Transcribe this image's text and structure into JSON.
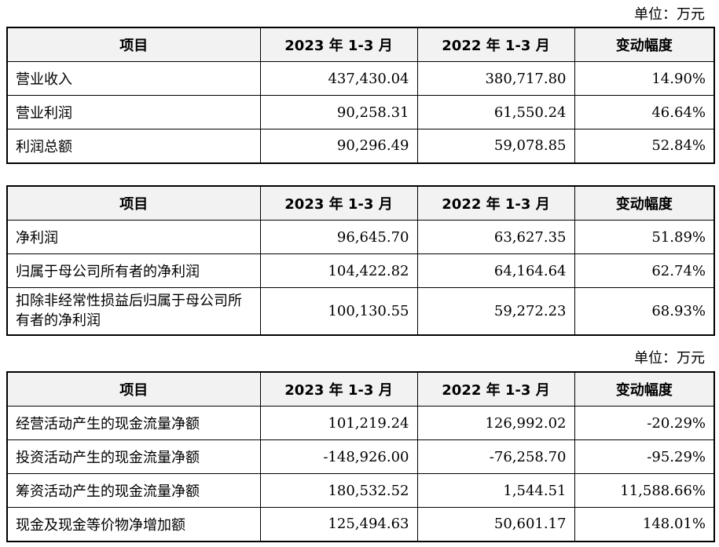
{
  "unit_label_1": "单位：万元",
  "table1": {
    "headers": [
      "项目",
      "2023 年 1-3 月",
      "2022 年 1-3 月",
      "变动幅度"
    ],
    "rows": [
      [
        "营业收入",
        "437,430.04",
        "380,717.80",
        "14.90%"
      ],
      [
        "营业利润",
        "90,258.31",
        "61,550.24",
        "46.64%"
      ],
      [
        "利润总额",
        "90,296.49",
        "59,078.85",
        "52.84%"
      ]
    ]
  },
  "table2": {
    "headers": [
      "项目",
      "2023 年 1-3 月",
      "2022 年 1-3 月",
      "变动幅度"
    ],
    "rows": [
      [
        "净利润",
        "96,645.70",
        "63,627.35",
        "51.89%"
      ],
      [
        "归属于母公司所有者的净利润",
        "104,422.82",
        "64,164.64",
        "62.74%"
      ],
      [
        "扣除非经常性损益后归属于母公司所有者的净利润",
        "100,130.55",
        "59,272.23",
        "68.93%"
      ]
    ]
  },
  "unit_label_2": "单位：万元",
  "table3": {
    "headers": [
      "项目",
      "2023 年 1-3 月",
      "2022 年 1-3 月",
      "变动幅度"
    ],
    "rows": [
      [
        "经营活动产生的现金流量净额",
        "101,219.24",
        "126,992.02",
        "-20.29%"
      ],
      [
        "投资活动产生的现金流量净额",
        "-148,926.00",
        "-76,258.70",
        "-95.29%"
      ],
      [
        "筹资活动产生的现金流量净额",
        "180,532.52",
        "1,544.51",
        "11,588.66%"
      ],
      [
        "现金及现金等价物净增加额",
        "125,494.63",
        "50,601.17",
        "148.01%"
      ]
    ]
  }
}
